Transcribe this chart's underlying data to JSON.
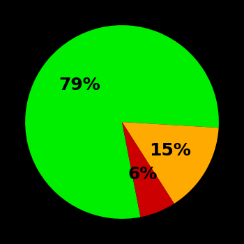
{
  "slices": [
    79,
    15,
    6
  ],
  "colors": [
    "#00ee00",
    "#ffaa00",
    "#cc0000"
  ],
  "labels": [
    "79%",
    "15%",
    "6%"
  ],
  "background_color": "#000000",
  "label_fontsize": 18,
  "label_fontweight": "bold",
  "figsize": [
    3.5,
    3.5
  ],
  "dpi": 100,
  "startangle": -79,
  "label_color": "#000000",
  "label_radii": [
    0.58,
    0.58,
    0.58
  ]
}
